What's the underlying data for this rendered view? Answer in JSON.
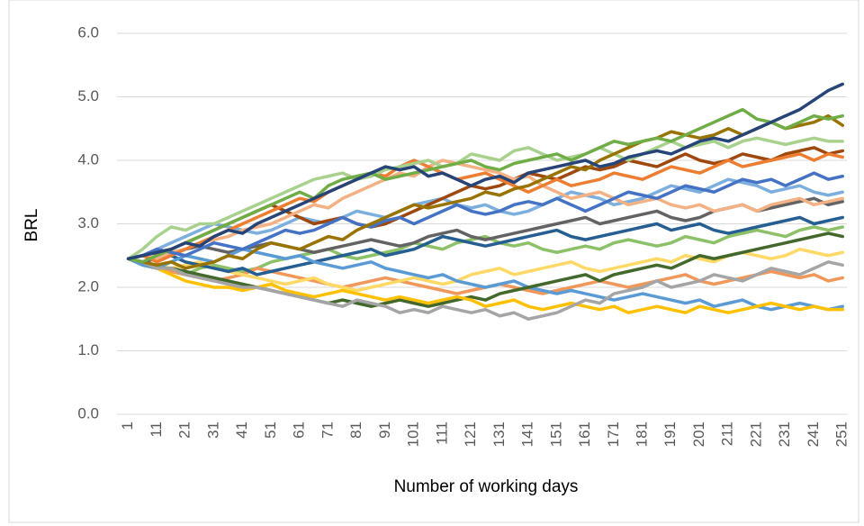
{
  "chart_data": {
    "type": "line",
    "y_label": "BRL",
    "x_label": "Number of working days",
    "xlim": [
      0.5,
      252.5
    ],
    "xticks": [
      1,
      11,
      21,
      31,
      41,
      51,
      61,
      71,
      81,
      91,
      101,
      111,
      121,
      131,
      141,
      151,
      161,
      171,
      181,
      191,
      201,
      211,
      221,
      231,
      241,
      251
    ],
    "ylim": [
      0,
      6
    ],
    "yticks": [
      {
        "value": 0,
        "label": "0.0"
      },
      {
        "value": 1,
        "label": "1.0"
      },
      {
        "value": 2,
        "label": "2.0"
      },
      {
        "value": 3,
        "label": "3.0"
      },
      {
        "value": 4,
        "label": "4.0"
      },
      {
        "value": 5,
        "label": "5.0"
      },
      {
        "value": 6,
        "label": "6.0"
      }
    ],
    "grid": true,
    "x": [
      1,
      6,
      11,
      16,
      21,
      26,
      31,
      36,
      41,
      46,
      51,
      56,
      61,
      66,
      71,
      76,
      81,
      86,
      91,
      96,
      101,
      106,
      111,
      116,
      121,
      126,
      131,
      136,
      141,
      146,
      151,
      156,
      161,
      166,
      171,
      176,
      181,
      186,
      191,
      196,
      201,
      206,
      211,
      216,
      221,
      226,
      231,
      236,
      241,
      246,
      251
    ],
    "series": [
      {
        "color": "#8cc168",
        "values": [
          2.45,
          2.35,
          2.3,
          2.25,
          2.2,
          2.3,
          2.35,
          2.3,
          2.25,
          2.3,
          2.4,
          2.45,
          2.5,
          2.55,
          2.6,
          2.5,
          2.45,
          2.5,
          2.55,
          2.6,
          2.7,
          2.65,
          2.6,
          2.7,
          2.75,
          2.8,
          2.7,
          2.65,
          2.7,
          2.6,
          2.55,
          2.6,
          2.65,
          2.6,
          2.7,
          2.75,
          2.7,
          2.65,
          2.7,
          2.8,
          2.75,
          2.7,
          2.8,
          2.85,
          2.9,
          2.85,
          2.8,
          2.9,
          2.95,
          2.9,
          2.95
        ]
      },
      {
        "color": "#f1975a",
        "values": [
          2.45,
          2.4,
          2.3,
          2.25,
          2.2,
          2.15,
          2.1,
          2.15,
          2.2,
          2.3,
          2.25,
          2.2,
          2.15,
          2.1,
          2.05,
          2.0,
          2.05,
          2.1,
          2.15,
          2.1,
          2.05,
          2.0,
          1.95,
          1.9,
          1.95,
          2.0,
          2.05,
          2.0,
          1.95,
          1.9,
          1.95,
          2.0,
          2.05,
          2.1,
          2.05,
          2.0,
          2.05,
          2.1,
          2.15,
          2.2,
          2.1,
          2.05,
          2.1,
          2.15,
          2.2,
          2.25,
          2.2,
          2.15,
          2.2,
          2.1,
          2.15
        ]
      },
      {
        "color": "#636363",
        "values": [
          2.45,
          2.4,
          2.5,
          2.55,
          2.6,
          2.65,
          2.6,
          2.55,
          2.6,
          2.65,
          2.7,
          2.65,
          2.6,
          2.55,
          2.6,
          2.65,
          2.7,
          2.75,
          2.7,
          2.65,
          2.7,
          2.8,
          2.85,
          2.9,
          2.8,
          2.75,
          2.8,
          2.85,
          2.9,
          2.95,
          3.0,
          3.05,
          3.1,
          3.0,
          3.05,
          3.1,
          3.15,
          3.2,
          3.1,
          3.05,
          3.1,
          3.2,
          3.25,
          3.3,
          3.2,
          3.25,
          3.3,
          3.35,
          3.4,
          3.3,
          3.35
        ]
      },
      {
        "color": "#7cafdd",
        "values": [
          2.45,
          2.5,
          2.6,
          2.7,
          2.8,
          2.9,
          3.0,
          2.95,
          2.9,
          2.85,
          2.9,
          3.0,
          3.1,
          3.05,
          3.0,
          3.1,
          3.2,
          3.15,
          3.1,
          3.2,
          3.3,
          3.35,
          3.4,
          3.3,
          3.25,
          3.3,
          3.2,
          3.15,
          3.2,
          3.3,
          3.4,
          3.5,
          3.45,
          3.4,
          3.3,
          3.35,
          3.4,
          3.5,
          3.6,
          3.55,
          3.5,
          3.6,
          3.7,
          3.65,
          3.6,
          3.5,
          3.55,
          3.6,
          3.5,
          3.45,
          3.5
        ]
      },
      {
        "color": "#ffd966",
        "values": [
          2.45,
          2.4,
          2.35,
          2.3,
          2.35,
          2.4,
          2.3,
          2.25,
          2.2,
          2.15,
          2.1,
          2.05,
          2.1,
          2.15,
          2.05,
          2.0,
          1.95,
          2.0,
          2.05,
          2.1,
          2.15,
          2.1,
          2.05,
          2.1,
          2.2,
          2.25,
          2.3,
          2.2,
          2.25,
          2.3,
          2.35,
          2.4,
          2.3,
          2.25,
          2.3,
          2.35,
          2.4,
          2.45,
          2.4,
          2.5,
          2.45,
          2.4,
          2.5,
          2.55,
          2.5,
          2.45,
          2.5,
          2.6,
          2.55,
          2.5,
          2.55
        ]
      },
      {
        "color": "#9e480e",
        "values": [
          2.45,
          2.5,
          2.55,
          2.6,
          2.7,
          2.8,
          2.9,
          3.0,
          3.1,
          3.2,
          3.3,
          3.2,
          3.1,
          3.0,
          3.05,
          3.1,
          3.0,
          2.95,
          3.0,
          3.1,
          3.2,
          3.3,
          3.4,
          3.5,
          3.6,
          3.55,
          3.6,
          3.7,
          3.8,
          3.75,
          3.7,
          3.8,
          3.9,
          3.85,
          3.9,
          4.0,
          3.95,
          3.9,
          4.0,
          4.1,
          4.0,
          3.95,
          4.0,
          4.1,
          4.05,
          4.0,
          4.1,
          4.15,
          4.2,
          4.1,
          4.15
        ]
      },
      {
        "color": "#255e91",
        "values": [
          2.45,
          2.4,
          2.45,
          2.5,
          2.4,
          2.35,
          2.3,
          2.25,
          2.3,
          2.2,
          2.25,
          2.3,
          2.35,
          2.4,
          2.45,
          2.5,
          2.55,
          2.6,
          2.5,
          2.55,
          2.6,
          2.7,
          2.8,
          2.75,
          2.7,
          2.65,
          2.7,
          2.75,
          2.8,
          2.85,
          2.9,
          2.8,
          2.75,
          2.8,
          2.85,
          2.9,
          2.95,
          3.0,
          2.9,
          2.95,
          3.0,
          2.9,
          2.85,
          2.9,
          2.95,
          3.0,
          3.05,
          3.1,
          3.0,
          3.05,
          3.1
        ]
      },
      {
        "color": "#f4b183",
        "values": [
          2.45,
          2.5,
          2.45,
          2.55,
          2.6,
          2.7,
          2.75,
          2.8,
          2.9,
          2.95,
          3.0,
          3.1,
          3.2,
          3.3,
          3.25,
          3.4,
          3.5,
          3.6,
          3.7,
          3.8,
          3.75,
          3.9,
          4.0,
          3.95,
          3.9,
          3.85,
          3.8,
          3.7,
          3.75,
          3.6,
          3.5,
          3.4,
          3.45,
          3.5,
          3.4,
          3.3,
          3.35,
          3.4,
          3.3,
          3.25,
          3.3,
          3.2,
          3.25,
          3.3,
          3.2,
          3.3,
          3.35,
          3.4,
          3.3,
          3.35,
          3.4
        ]
      },
      {
        "color": "#5b9bd5",
        "values": [
          2.45,
          2.35,
          2.3,
          2.4,
          2.5,
          2.45,
          2.4,
          2.5,
          2.6,
          2.55,
          2.5,
          2.45,
          2.5,
          2.4,
          2.35,
          2.3,
          2.35,
          2.4,
          2.3,
          2.25,
          2.2,
          2.15,
          2.2,
          2.1,
          2.05,
          2.0,
          2.05,
          2.1,
          2.0,
          1.95,
          1.9,
          1.95,
          1.9,
          1.85,
          1.8,
          1.85,
          1.9,
          1.85,
          1.8,
          1.75,
          1.8,
          1.7,
          1.75,
          1.8,
          1.7,
          1.65,
          1.7,
          1.75,
          1.7,
          1.65,
          1.7
        ]
      },
      {
        "color": "#43682b",
        "values": [
          2.45,
          2.4,
          2.3,
          2.3,
          2.25,
          2.2,
          2.15,
          2.1,
          2.05,
          2.0,
          1.95,
          1.9,
          1.85,
          1.8,
          1.75,
          1.8,
          1.75,
          1.7,
          1.75,
          1.8,
          1.75,
          1.7,
          1.75,
          1.8,
          1.85,
          1.8,
          1.9,
          1.95,
          2.0,
          2.05,
          2.1,
          2.15,
          2.2,
          2.1,
          2.2,
          2.25,
          2.3,
          2.35,
          2.3,
          2.4,
          2.5,
          2.45,
          2.5,
          2.55,
          2.6,
          2.65,
          2.7,
          2.75,
          2.8,
          2.85,
          2.8
        ]
      },
      {
        "color": "#ed7d31",
        "values": [
          2.45,
          2.5,
          2.4,
          2.5,
          2.6,
          2.7,
          2.8,
          2.9,
          3.0,
          3.1,
          3.2,
          3.3,
          3.4,
          3.35,
          3.5,
          3.6,
          3.7,
          3.8,
          3.75,
          3.9,
          4.0,
          3.9,
          3.8,
          3.7,
          3.75,
          3.8,
          3.7,
          3.6,
          3.5,
          3.6,
          3.7,
          3.6,
          3.65,
          3.7,
          3.8,
          3.75,
          3.7,
          3.8,
          3.9,
          3.85,
          3.8,
          3.9,
          4.0,
          3.9,
          3.95,
          4.0,
          4.05,
          4.1,
          4.0,
          4.1,
          4.05
        ]
      },
      {
        "color": "#4472c4",
        "values": [
          2.45,
          2.5,
          2.6,
          2.55,
          2.5,
          2.6,
          2.7,
          2.65,
          2.6,
          2.7,
          2.8,
          2.9,
          2.85,
          2.9,
          3.0,
          3.1,
          3.0,
          2.95,
          3.05,
          3.1,
          3.0,
          3.1,
          3.2,
          3.3,
          3.2,
          3.15,
          3.2,
          3.3,
          3.35,
          3.3,
          3.4,
          3.3,
          3.2,
          3.3,
          3.4,
          3.5,
          3.45,
          3.4,
          3.5,
          3.6,
          3.55,
          3.5,
          3.6,
          3.7,
          3.65,
          3.7,
          3.6,
          3.7,
          3.8,
          3.7,
          3.75
        ]
      },
      {
        "color": "#ffc000",
        "values": [
          2.45,
          2.4,
          2.3,
          2.2,
          2.1,
          2.05,
          2.0,
          2.0,
          1.95,
          2.0,
          2.05,
          1.95,
          1.9,
          1.85,
          1.9,
          1.95,
          1.9,
          1.85,
          1.8,
          1.85,
          1.8,
          1.75,
          1.8,
          1.85,
          1.8,
          1.7,
          1.75,
          1.8,
          1.7,
          1.65,
          1.7,
          1.75,
          1.7,
          1.65,
          1.7,
          1.6,
          1.65,
          1.7,
          1.65,
          1.6,
          1.7,
          1.65,
          1.6,
          1.65,
          1.7,
          1.75,
          1.7,
          1.65,
          1.7,
          1.65,
          1.65
        ]
      },
      {
        "color": "#a5a5a5",
        "values": [
          2.45,
          2.4,
          2.3,
          2.3,
          2.2,
          2.15,
          2.1,
          2.05,
          2.0,
          2.0,
          1.95,
          1.9,
          1.85,
          1.8,
          1.75,
          1.7,
          1.8,
          1.75,
          1.7,
          1.6,
          1.65,
          1.6,
          1.7,
          1.65,
          1.6,
          1.65,
          1.55,
          1.6,
          1.5,
          1.55,
          1.6,
          1.7,
          1.8,
          1.75,
          1.9,
          1.95,
          2.0,
          2.1,
          2.0,
          2.05,
          2.1,
          2.2,
          2.15,
          2.1,
          2.2,
          2.3,
          2.25,
          2.2,
          2.3,
          2.4,
          2.35
        ]
      },
      {
        "color": "#a9d18e",
        "values": [
          2.45,
          2.6,
          2.8,
          2.95,
          2.9,
          3.0,
          3.0,
          3.1,
          3.2,
          3.3,
          3.4,
          3.5,
          3.6,
          3.7,
          3.75,
          3.8,
          3.7,
          3.75,
          3.85,
          3.9,
          3.95,
          4.0,
          3.9,
          3.95,
          4.1,
          4.05,
          4.0,
          4.15,
          4.2,
          4.1,
          4.0,
          4.05,
          4.1,
          4.2,
          4.1,
          4.0,
          4.1,
          4.2,
          4.3,
          4.2,
          4.25,
          4.3,
          4.2,
          4.3,
          4.35,
          4.3,
          4.25,
          4.3,
          4.35,
          4.3,
          4.3
        ]
      },
      {
        "color": "#997300",
        "values": [
          2.45,
          2.4,
          2.35,
          2.4,
          2.3,
          2.35,
          2.4,
          2.5,
          2.45,
          2.6,
          2.7,
          2.65,
          2.6,
          2.7,
          2.8,
          2.75,
          2.9,
          3.0,
          3.1,
          3.2,
          3.3,
          3.25,
          3.3,
          3.35,
          3.4,
          3.5,
          3.45,
          3.55,
          3.6,
          3.7,
          3.8,
          3.9,
          3.85,
          4.0,
          4.1,
          4.2,
          4.3,
          4.35,
          4.45,
          4.4,
          4.35,
          4.4,
          4.5,
          4.4,
          4.5,
          4.6,
          4.5,
          4.55,
          4.6,
          4.7,
          4.55
        ]
      },
      {
        "color": "#70ad47",
        "values": [
          2.45,
          2.4,
          2.5,
          2.6,
          2.7,
          2.8,
          2.9,
          3.0,
          3.1,
          3.2,
          3.3,
          3.4,
          3.5,
          3.4,
          3.6,
          3.7,
          3.75,
          3.8,
          3.7,
          3.75,
          3.8,
          3.85,
          3.9,
          3.95,
          4.0,
          3.9,
          3.85,
          3.95,
          4.0,
          4.05,
          4.1,
          4.0,
          4.1,
          4.2,
          4.3,
          4.25,
          4.3,
          4.35,
          4.3,
          4.4,
          4.5,
          4.6,
          4.7,
          4.8,
          4.65,
          4.6,
          4.5,
          4.6,
          4.7,
          4.65,
          4.7
        ]
      },
      {
        "color": "#264478",
        "values": [
          2.45,
          2.5,
          2.55,
          2.6,
          2.7,
          2.65,
          2.8,
          2.9,
          2.85,
          3.0,
          3.1,
          3.2,
          3.3,
          3.4,
          3.5,
          3.6,
          3.7,
          3.8,
          3.9,
          3.85,
          3.9,
          3.75,
          3.8,
          3.7,
          3.6,
          3.7,
          3.75,
          3.65,
          3.8,
          3.85,
          3.9,
          3.95,
          4.0,
          3.9,
          3.95,
          4.05,
          4.1,
          4.15,
          4.1,
          4.2,
          4.3,
          4.35,
          4.3,
          4.4,
          4.5,
          4.6,
          4.7,
          4.8,
          4.95,
          5.1,
          5.2
        ]
      }
    ]
  }
}
